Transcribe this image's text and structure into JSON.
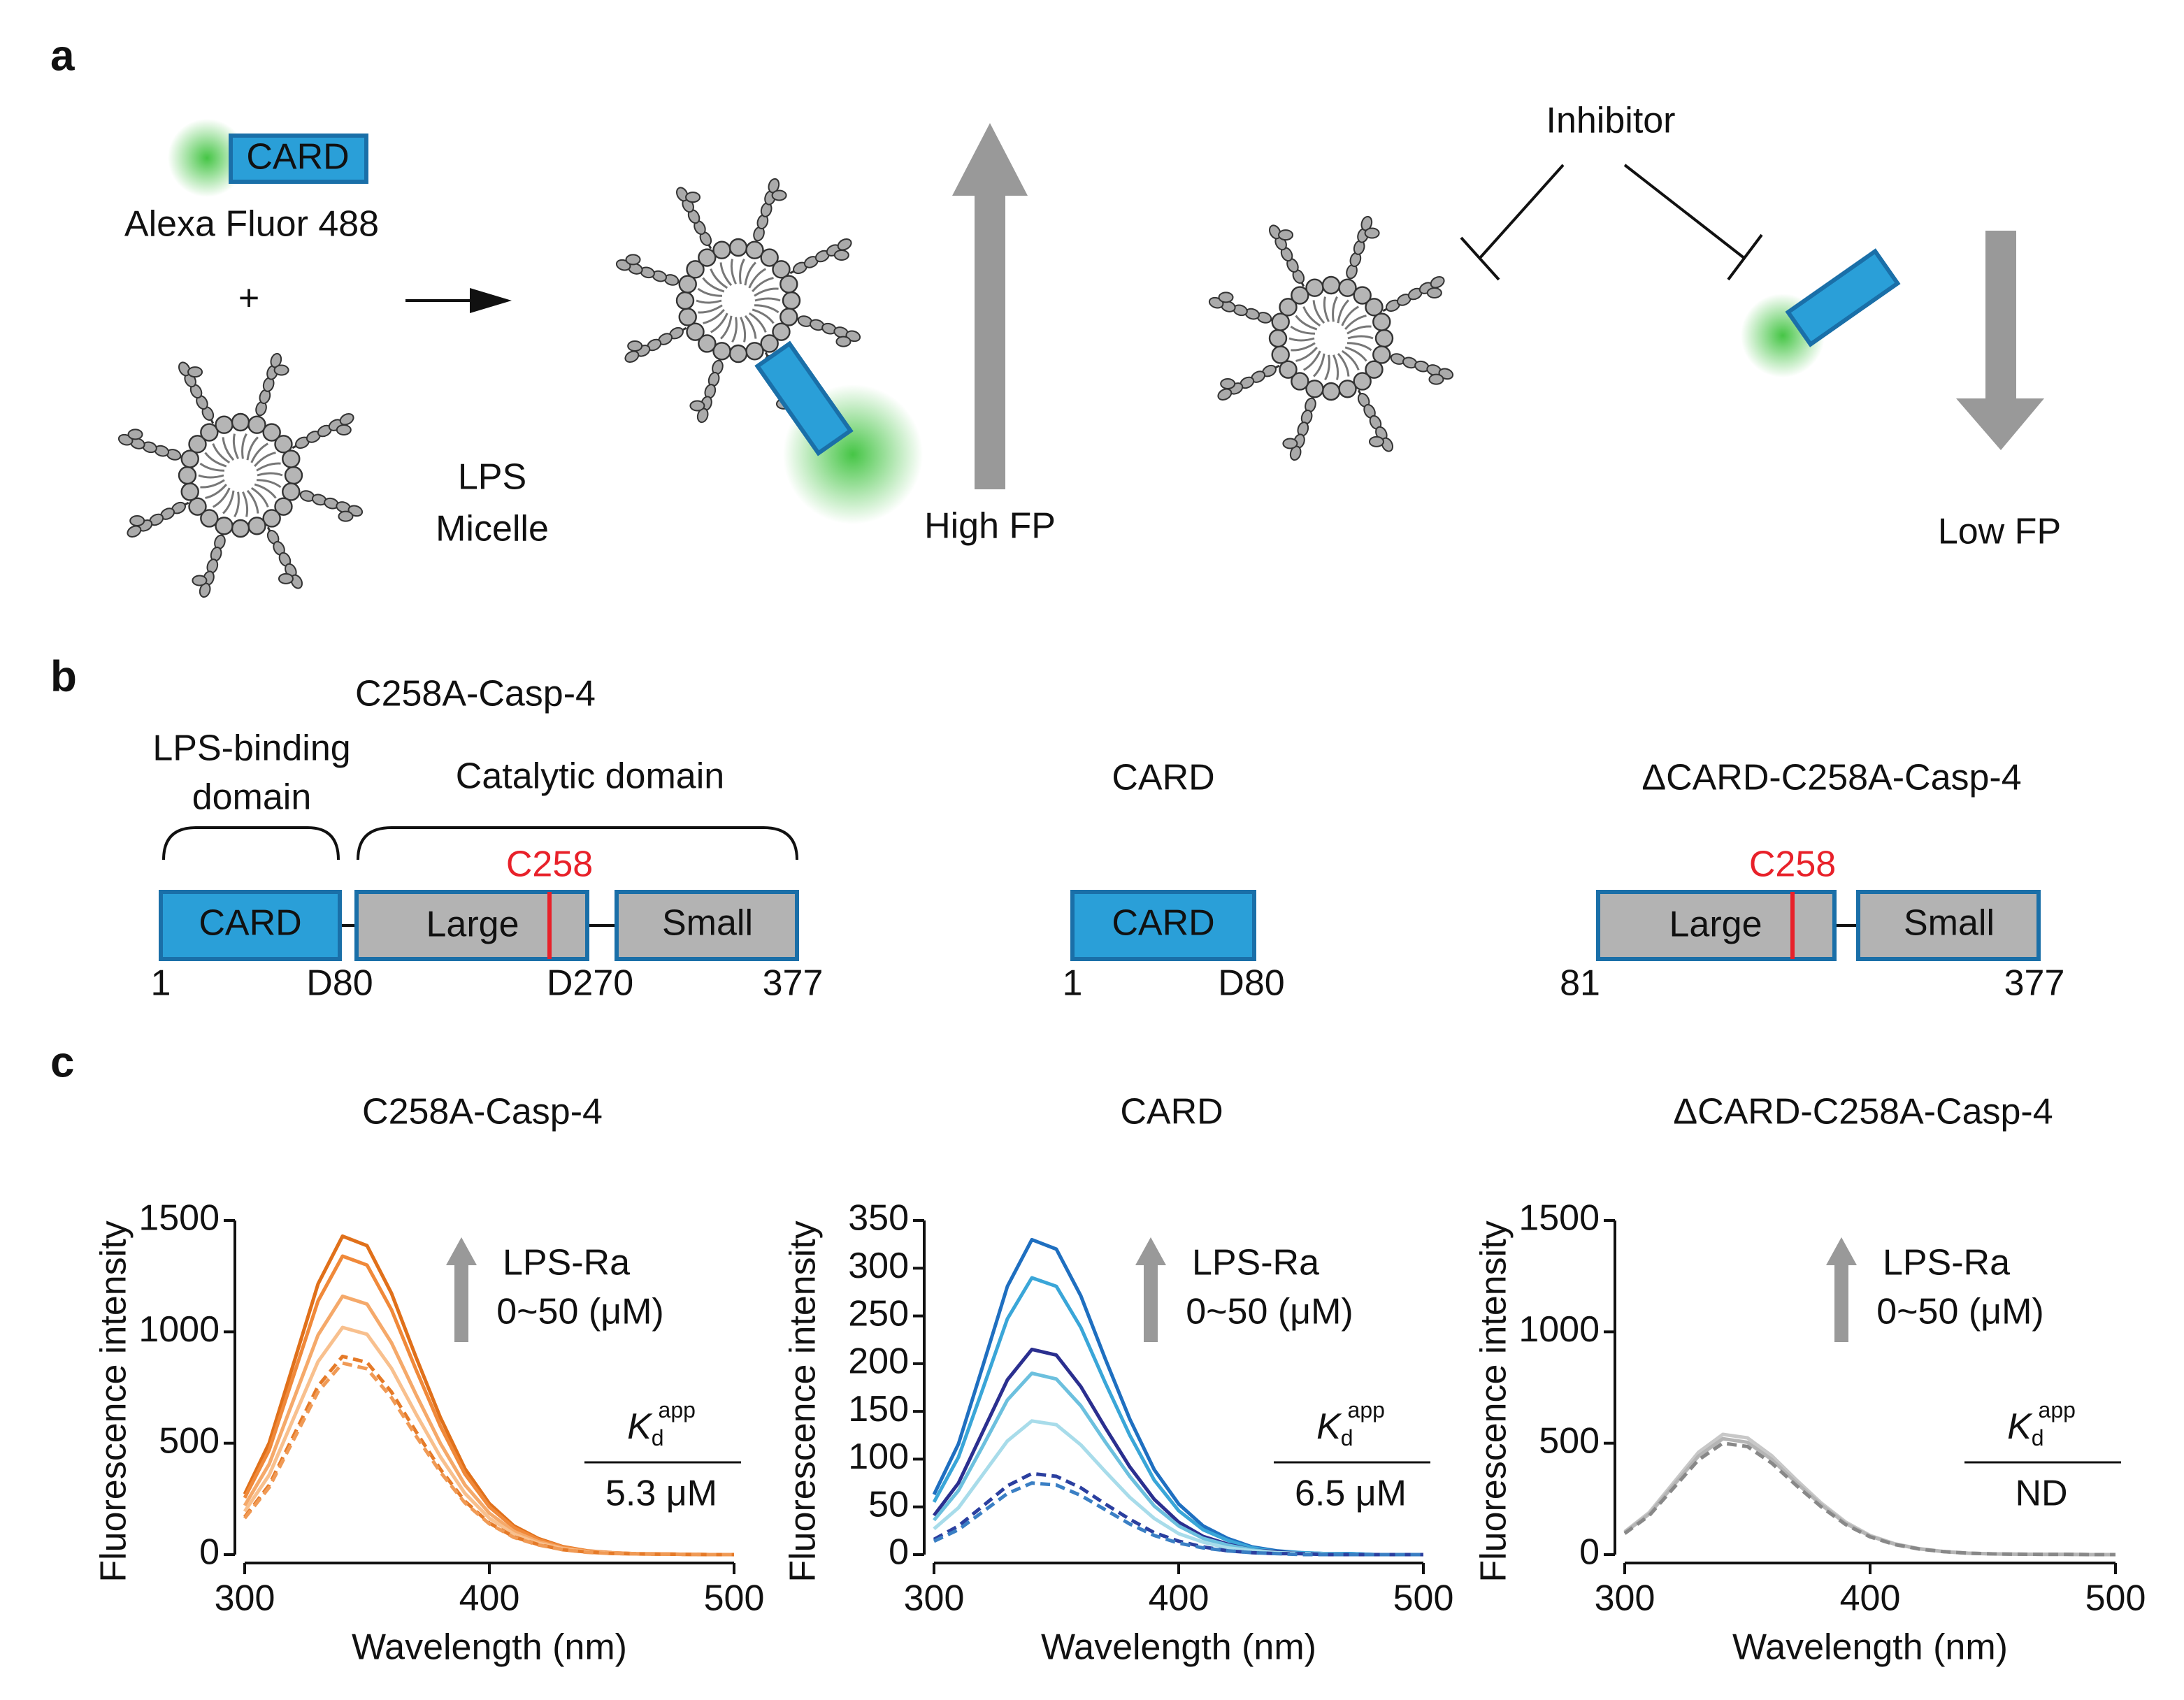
{
  "panel_labels": [
    "a",
    "b",
    "c"
  ],
  "panel_a": {
    "card": "CARD",
    "fluor": "Alexa Fluor 488",
    "plus": "+",
    "micelle": [
      "LPS",
      "Micelle"
    ],
    "high": "High FP",
    "inhibitor": "Inhibitor",
    "low": "Low FP"
  },
  "panel_b": {
    "constructs": [
      {
        "title": "C258A-Casp-4",
        "lps_domain": [
          "LPS-binding",
          "domain"
        ],
        "cat_domain": "Catalytic domain",
        "site": "C258",
        "boxes": [
          "CARD",
          "Large",
          "Small"
        ],
        "positions": [
          "1",
          "D80",
          "D270",
          "377"
        ]
      },
      {
        "title": "CARD",
        "boxes": [
          "CARD"
        ],
        "positions": [
          "1",
          "D80"
        ]
      },
      {
        "title": "ΔCARD-C258A-Casp-4",
        "site": "C258",
        "boxes": [
          "Large",
          "Small"
        ],
        "positions": [
          "81",
          "377"
        ]
      }
    ]
  },
  "chart_data": [
    {
      "type": "line",
      "title": "C258A-Casp-4",
      "x_label": "Wavelength (nm)",
      "y_label": "Fluorescence intensity",
      "annotation": [
        "LPS-Ra",
        "0~50 (μM)"
      ],
      "kd": {
        "symbol": "K",
        "sub": "d",
        "sup": "app",
        "value": "5.3 μM"
      },
      "x": [
        300,
        310,
        320,
        330,
        340,
        350,
        360,
        370,
        380,
        390,
        400,
        410,
        420,
        430,
        440,
        450,
        460,
        470,
        480,
        490,
        500
      ],
      "xlim": [
        300,
        500
      ],
      "xticks": [
        300,
        400,
        500
      ],
      "ylim": [
        0,
        1500
      ],
      "yticks": [
        0,
        500,
        1000,
        1500
      ],
      "series": [
        {
          "color": "#e0701a",
          "dashed": false,
          "values": [
            272,
            501,
            858,
            1216,
            1430,
            1387,
            1173,
            887,
            615,
            386,
            229,
            129,
            72,
            36,
            17,
            9,
            4,
            3,
            1,
            0,
            0
          ]
        },
        {
          "color": "#f0893a",
          "dashed": false,
          "values": [
            255,
            469,
            804,
            1139,
            1340,
            1300,
            1099,
            831,
            576,
            362,
            214,
            121,
            67,
            34,
            16,
            8,
            4,
            3,
            1,
            0,
            0
          ]
        },
        {
          "color": "#f5a96a",
          "dashed": false,
          "values": [
            220,
            406,
            696,
            986,
            1160,
            1125,
            951,
            719,
            499,
            313,
            186,
            104,
            58,
            29,
            14,
            7,
            3,
            2,
            1,
            0,
            0
          ]
        },
        {
          "color": "#f8c08e",
          "dashed": false,
          "values": [
            194,
            357,
            612,
            867,
            1020,
            989,
            836,
            632,
            439,
            275,
            163,
            92,
            51,
            26,
            12,
            6,
            3,
            2,
            1,
            0,
            0
          ]
        },
        {
          "color": "#e57a28",
          "dashed": true,
          "values": [
            169,
            312,
            534,
            757,
            890,
            863,
            730,
            552,
            383,
            240,
            142,
            80,
            45,
            22,
            11,
            5,
            3,
            2,
            1,
            0,
            0
          ]
        },
        {
          "color": "#f09a55",
          "dashed": true,
          "values": [
            163,
            301,
            516,
            731,
            860,
            834,
            705,
            533,
            370,
            232,
            138,
            77,
            43,
            22,
            10,
            5,
            3,
            2,
            1,
            0,
            0
          ]
        }
      ]
    },
    {
      "type": "line",
      "title": "CARD",
      "x_label": "Wavelength (nm)",
      "y_label": "Fluorescence intensity",
      "annotation": [
        "LPS-Ra",
        "0~50 (μM)"
      ],
      "kd": {
        "symbol": "K",
        "sub": "d",
        "sup": "app",
        "value": "6.5 μM"
      },
      "x": [
        300,
        310,
        320,
        330,
        340,
        350,
        360,
        370,
        380,
        390,
        400,
        410,
        420,
        430,
        440,
        450,
        460,
        470,
        480,
        490,
        500
      ],
      "xlim": [
        300,
        500
      ],
      "xticks": [
        300,
        400,
        500
      ],
      "ylim": [
        0,
        350
      ],
      "yticks": [
        0,
        50,
        100,
        150,
        200,
        250,
        300,
        350
      ],
      "series": [
        {
          "color": "#1f6fc0",
          "dashed": false,
          "values": [
            63,
            116,
            198,
            281,
            330,
            320,
            271,
            205,
            142,
            89,
            53,
            30,
            17,
            8,
            4,
            2,
            1,
            1,
            0,
            0,
            0
          ]
        },
        {
          "color": "#3aa6d8",
          "dashed": false,
          "values": [
            55,
            102,
            174,
            247,
            290,
            281,
            238,
            180,
            125,
            78,
            46,
            26,
            15,
            7,
            3,
            2,
            1,
            1,
            0,
            0,
            0
          ]
        },
        {
          "color": "#2b2f8f",
          "dashed": false,
          "values": [
            41,
            75,
            129,
            183,
            215,
            209,
            176,
            133,
            92,
            58,
            34,
            19,
            11,
            5,
            3,
            1,
            1,
            0,
            0,
            0,
            0
          ]
        },
        {
          "color": "#6cc0de",
          "dashed": false,
          "values": [
            36,
            67,
            114,
            162,
            190,
            184,
            156,
            118,
            82,
            51,
            30,
            17,
            10,
            5,
            2,
            1,
            1,
            0,
            0,
            0,
            0
          ]
        },
        {
          "color": "#a8dcea",
          "dashed": false,
          "values": [
            27,
            49,
            84,
            119,
            140,
            136,
            115,
            87,
            60,
            38,
            22,
            13,
            7,
            4,
            2,
            1,
            0,
            0,
            0,
            0,
            0
          ]
        },
        {
          "color": "#2b3f9f",
          "dashed": true,
          "values": [
            16,
            30,
            51,
            72,
            85,
            82,
            70,
            53,
            37,
            23,
            14,
            8,
            4,
            2,
            1,
            1,
            0,
            0,
            0,
            0,
            0
          ]
        },
        {
          "color": "#3a7fc4",
          "dashed": true,
          "values": [
            14,
            26,
            45,
            64,
            75,
            73,
            62,
            47,
            32,
            20,
            12,
            7,
            4,
            2,
            1,
            0,
            0,
            0,
            0,
            0,
            0
          ]
        }
      ]
    },
    {
      "type": "line",
      "title": "ΔCARD-C258A-Casp-4",
      "x_label": "Wavelength (nm)",
      "y_label": "Fluorescence intensity",
      "annotation": [
        "LPS-Ra",
        "0~50 (μM)"
      ],
      "kd": {
        "symbol": "K",
        "sub": "d",
        "sup": "app",
        "value": "ND"
      },
      "x": [
        300,
        310,
        320,
        330,
        340,
        350,
        360,
        370,
        380,
        390,
        400,
        410,
        420,
        430,
        440,
        450,
        460,
        470,
        480,
        490,
        500
      ],
      "xlim": [
        300,
        500
      ],
      "xticks": [
        300,
        400,
        500
      ],
      "ylim": [
        0,
        1500
      ],
      "yticks": [
        0,
        500,
        1000,
        1500
      ],
      "series": [
        {
          "color": "#c8c8c8",
          "dashed": false,
          "values": [
            103,
            189,
            324,
            459,
            540,
            524,
            443,
            335,
            232,
            146,
            86,
            49,
            27,
            14,
            6,
            3,
            2,
            1,
            1,
            0,
            0
          ]
        },
        {
          "color": "#b5b5b5",
          "dashed": false,
          "values": [
            99,
            182,
            312,
            442,
            520,
            504,
            426,
            322,
            224,
            140,
            83,
            47,
            26,
            13,
            6,
            3,
            2,
            1,
            1,
            0,
            0
          ]
        },
        {
          "color": "#888888",
          "dashed": true,
          "values": [
            95,
            175,
            300,
            425,
            500,
            485,
            410,
            310,
            215,
            135,
            80,
            45,
            25,
            13,
            6,
            3,
            2,
            1,
            1,
            0,
            0
          ]
        }
      ]
    }
  ]
}
